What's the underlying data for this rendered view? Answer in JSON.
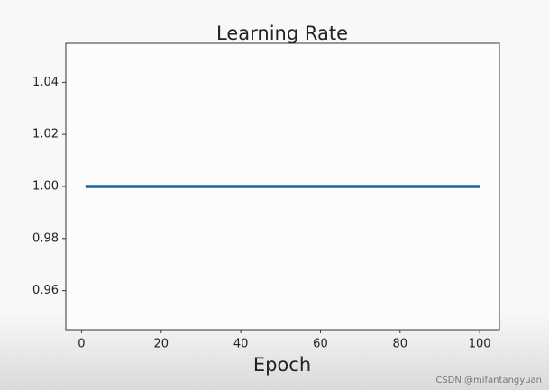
{
  "chart_data": {
    "type": "line",
    "title": "Learning Rate",
    "x_label": "Epoch",
    "x": [
      1,
      2,
      3,
      4,
      5,
      6,
      7,
      8,
      9,
      10,
      11,
      12,
      13,
      14,
      15,
      16,
      17,
      18,
      19,
      20,
      21,
      22,
      23,
      24,
      25,
      26,
      27,
      28,
      29,
      30,
      31,
      32,
      33,
      34,
      35,
      36,
      37,
      38,
      39,
      40,
      41,
      42,
      43,
      44,
      45,
      46,
      47,
      48,
      49,
      50,
      51,
      52,
      53,
      54,
      55,
      56,
      57,
      58,
      59,
      60,
      61,
      62,
      63,
      64,
      65,
      66,
      67,
      68,
      69,
      70,
      71,
      72,
      73,
      74,
      75,
      76,
      77,
      78,
      79,
      80,
      81,
      82,
      83,
      84,
      85,
      86,
      87,
      88,
      89,
      90,
      91,
      92,
      93,
      94,
      95,
      96,
      97,
      98,
      99,
      100
    ],
    "values": [
      1,
      1,
      1,
      1,
      1,
      1,
      1,
      1,
      1,
      1,
      1,
      1,
      1,
      1,
      1,
      1,
      1,
      1,
      1,
      1,
      1,
      1,
      1,
      1,
      1,
      1,
      1,
      1,
      1,
      1,
      1,
      1,
      1,
      1,
      1,
      1,
      1,
      1,
      1,
      1,
      1,
      1,
      1,
      1,
      1,
      1,
      1,
      1,
      1,
      1,
      1,
      1,
      1,
      1,
      1,
      1,
      1,
      1,
      1,
      1,
      1,
      1,
      1,
      1,
      1,
      1,
      1,
      1,
      1,
      1,
      1,
      1,
      1,
      1,
      1,
      1,
      1,
      1,
      1,
      1,
      1,
      1,
      1,
      1,
      1,
      1,
      1,
      1,
      1,
      1,
      1,
      1,
      1,
      1,
      1,
      1,
      1,
      1,
      1,
      1
    ],
    "color": "#1f5fa8",
    "xlim": [
      -3.95,
      104.95
    ],
    "xticks": [
      0,
      20,
      40,
      60,
      80,
      100
    ],
    "ylim": [
      0.945,
      1.055
    ],
    "yticks": [
      0.96,
      0.98,
      {
        "value": 1,
        "label": "1.00"
      },
      1.02,
      1.04
    ],
    "grid": false
  },
  "watermark": "CSDN @mifantangyuan"
}
